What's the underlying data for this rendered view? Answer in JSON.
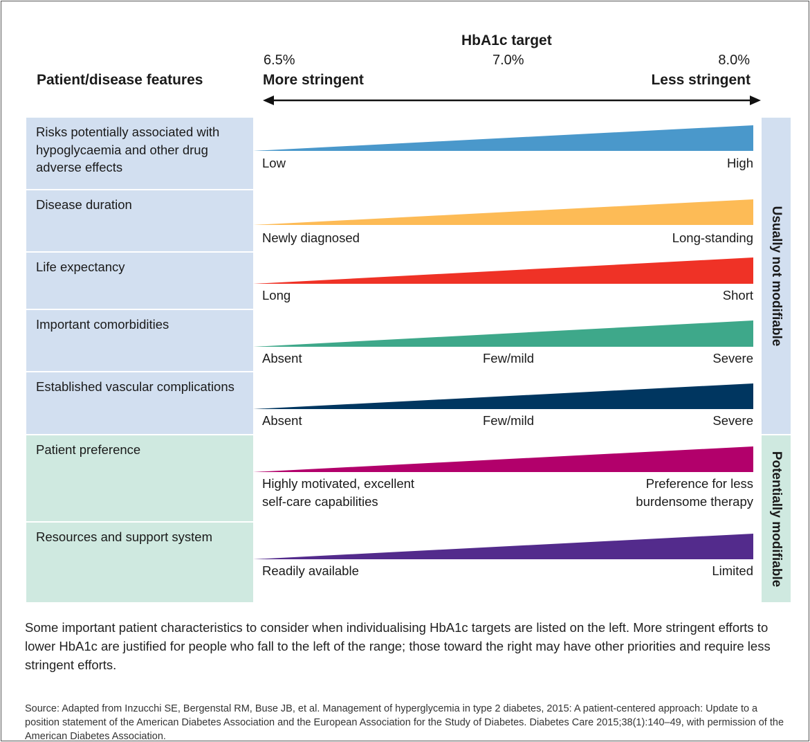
{
  "header": {
    "title": "HbA1c target",
    "column_label": "Patient/disease features",
    "pct_left": "6.5%",
    "pct_mid": "7.0%",
    "pct_right": "8.0%",
    "left_label": "More stringent",
    "right_label": "Less stringent"
  },
  "groups": {
    "not_modifiable": "Usually not modifiable",
    "modifiable": "Potentially modifiable"
  },
  "rows": [
    {
      "feature": "Risks potentially associated with hypoglycaemia and other drug adverse effects",
      "left": "Low",
      "mid": "",
      "right": "High",
      "color": "#4a98cb"
    },
    {
      "feature": "Disease duration",
      "left": "Newly diagnosed",
      "mid": "",
      "right": "Long-standing",
      "color": "#fdbb56"
    },
    {
      "feature": "Life expectancy",
      "left": "Long",
      "mid": "",
      "right": "Short",
      "color": "#ef3226"
    },
    {
      "feature": "Important comorbidities",
      "left": "Absent",
      "mid": "Few/mild",
      "right": "Severe",
      "color": "#3ea88a"
    },
    {
      "feature": "Established vascular complications",
      "left": "Absent",
      "mid": "Few/mild",
      "right": "Severe",
      "color": "#003660"
    },
    {
      "feature": "Patient preference",
      "left": "Highly motivated, excellent\nself-care capabilities",
      "mid": "",
      "right": "Preference for less\nburdensome therapy",
      "color": "#b2006b"
    },
    {
      "feature": "Resources and support system",
      "left": "Readily available",
      "mid": "",
      "right": "Limited",
      "color": "#532b8c"
    }
  ],
  "note": "Some important patient characteristics to consider when individualising HbA1c targets are listed on the left. More stringent efforts to lower HbA1c are justified for people who fall to the left of the range; those toward the right may have other priorities and require less stringent efforts.",
  "source": "Source: Adapted from Inzucchi SE, Bergenstal RM, Buse JB, et al. Management of hyperglycemia in type 2 diabetes, 2015: A patient-centered approach: Update to a position statement of the American Diabetes Association and the European Association for the Study of Diabetes. Diabetes Care 2015;38(1):140–49, with permission of the American Diabetes Association."
}
